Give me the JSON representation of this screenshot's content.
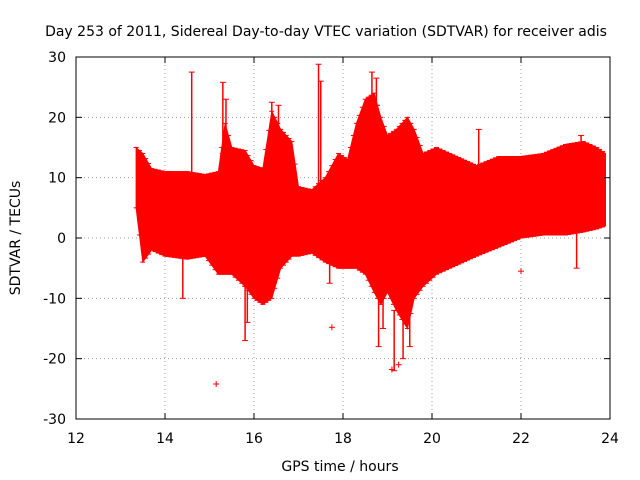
{
  "chart_data": {
    "type": "scatter",
    "title": "Day 253 of 2011, Sidereal Day-to-day VTEC variation (SDTVAR) for receiver adis",
    "xlabel": "GPS time / hours",
    "ylabel": "SDTVAR / TECUs",
    "xlim": [
      12,
      24
    ],
    "ylim": [
      -30,
      30
    ],
    "xticks": [
      12,
      14,
      16,
      18,
      20,
      22,
      24
    ],
    "yticks": [
      -30,
      -20,
      -10,
      0,
      10,
      20,
      30
    ],
    "grid": true,
    "series_color": "#ff0000",
    "band_upper": [
      [
        13.35,
        15.0
      ],
      [
        13.5,
        14.0
      ],
      [
        13.7,
        11.5
      ],
      [
        14.0,
        11.0
      ],
      [
        14.5,
        11.0
      ],
      [
        14.9,
        10.5
      ],
      [
        15.2,
        11.0
      ],
      [
        15.35,
        19.0
      ],
      [
        15.5,
        15.0
      ],
      [
        15.8,
        14.5
      ],
      [
        16.0,
        12.0
      ],
      [
        16.2,
        11.5
      ],
      [
        16.4,
        21.0
      ],
      [
        16.6,
        18.0
      ],
      [
        16.85,
        16.0
      ],
      [
        17.0,
        8.5
      ],
      [
        17.3,
        8.0
      ],
      [
        17.6,
        10.0
      ],
      [
        17.9,
        14.0
      ],
      [
        18.1,
        13.0
      ],
      [
        18.3,
        19.0
      ],
      [
        18.5,
        23.0
      ],
      [
        18.7,
        24.0
      ],
      [
        18.85,
        20.0
      ],
      [
        19.0,
        17.0
      ],
      [
        19.2,
        18.0
      ],
      [
        19.45,
        20.0
      ],
      [
        19.6,
        18.0
      ],
      [
        19.8,
        14.0
      ],
      [
        20.1,
        15.0
      ],
      [
        20.4,
        14.0
      ],
      [
        21.0,
        12.0
      ],
      [
        21.5,
        13.5
      ],
      [
        22.0,
        13.5
      ],
      [
        22.5,
        14.0
      ],
      [
        23.0,
        15.5
      ],
      [
        23.4,
        16.0
      ],
      [
        23.7,
        15.0
      ],
      [
        23.9,
        14.0
      ]
    ],
    "band_lower": [
      [
        13.35,
        5.0
      ],
      [
        13.5,
        -4.0
      ],
      [
        13.7,
        -2.0
      ],
      [
        14.0,
        -3.0
      ],
      [
        14.5,
        -3.5
      ],
      [
        14.9,
        -3.0
      ],
      [
        15.2,
        -6.0
      ],
      [
        15.5,
        -6.0
      ],
      [
        15.8,
        -8.0
      ],
      [
        16.0,
        -10.0
      ],
      [
        16.2,
        -11.0
      ],
      [
        16.4,
        -10.0
      ],
      [
        16.6,
        -5.0
      ],
      [
        16.85,
        -3.0
      ],
      [
        17.0,
        -3.0
      ],
      [
        17.3,
        -2.5
      ],
      [
        17.6,
        -4.0
      ],
      [
        17.9,
        -5.0
      ],
      [
        18.1,
        -5.0
      ],
      [
        18.3,
        -5.0
      ],
      [
        18.5,
        -6.0
      ],
      [
        18.7,
        -9.0
      ],
      [
        18.85,
        -11.0
      ],
      [
        19.0,
        -9.0
      ],
      [
        19.2,
        -12.0
      ],
      [
        19.45,
        -15.0
      ],
      [
        19.6,
        -10.0
      ],
      [
        19.8,
        -8.0
      ],
      [
        20.1,
        -6.0
      ],
      [
        20.4,
        -5.0
      ],
      [
        21.0,
        -3.0
      ],
      [
        21.5,
        -1.5
      ],
      [
        22.0,
        0.0
      ],
      [
        22.5,
        0.5
      ],
      [
        23.0,
        0.5
      ],
      [
        23.4,
        1.0
      ],
      [
        23.7,
        1.5
      ],
      [
        23.9,
        2.0
      ]
    ],
    "spikes": [
      {
        "x": 14.6,
        "y_low": 10.0,
        "y_high": 27.5
      },
      {
        "x": 15.3,
        "y_low": 14.0,
        "y_high": 25.8
      },
      {
        "x": 15.37,
        "y_low": 14.0,
        "y_high": 23.0
      },
      {
        "x": 16.4,
        "y_low": 18.0,
        "y_high": 22.5
      },
      {
        "x": 16.55,
        "y_low": 17.0,
        "y_high": 22.0
      },
      {
        "x": 17.45,
        "y_low": 8.0,
        "y_high": 28.8
      },
      {
        "x": 17.5,
        "y_low": 9.0,
        "y_high": 26.0
      },
      {
        "x": 18.65,
        "y_low": 22.0,
        "y_high": 27.5
      },
      {
        "x": 18.75,
        "y_low": 22.0,
        "y_high": 26.5
      },
      {
        "x": 21.05,
        "y_low": 11.0,
        "y_high": 18.0
      },
      {
        "x": 23.35,
        "y_low": 14.0,
        "y_high": 17.0
      },
      {
        "x": 15.8,
        "y_low": -17.0,
        "y_high": -8.0
      },
      {
        "x": 15.85,
        "y_low": -14.0,
        "y_high": -8.0
      },
      {
        "x": 17.7,
        "y_low": -7.5,
        "y_high": -3.0
      },
      {
        "x": 18.8,
        "y_low": -18.0,
        "y_high": -9.0
      },
      {
        "x": 18.9,
        "y_low": -15.0,
        "y_high": -9.0
      },
      {
        "x": 19.15,
        "y_low": -22.0,
        "y_high": -12.0
      },
      {
        "x": 19.35,
        "y_low": -20.0,
        "y_high": -12.0
      },
      {
        "x": 19.5,
        "y_low": -18.0,
        "y_high": -10.0
      },
      {
        "x": 14.4,
        "y_low": -10.0,
        "y_high": -3.0
      },
      {
        "x": 23.25,
        "y_low": -5.0,
        "y_high": 1.0
      }
    ],
    "outliers": [
      {
        "x": 15.15,
        "y": -24.2
      },
      {
        "x": 17.75,
        "y": -14.8
      },
      {
        "x": 19.1,
        "y": -21.8
      },
      {
        "x": 19.25,
        "y": -21.0
      },
      {
        "x": 22.0,
        "y": -5.5
      }
    ]
  }
}
